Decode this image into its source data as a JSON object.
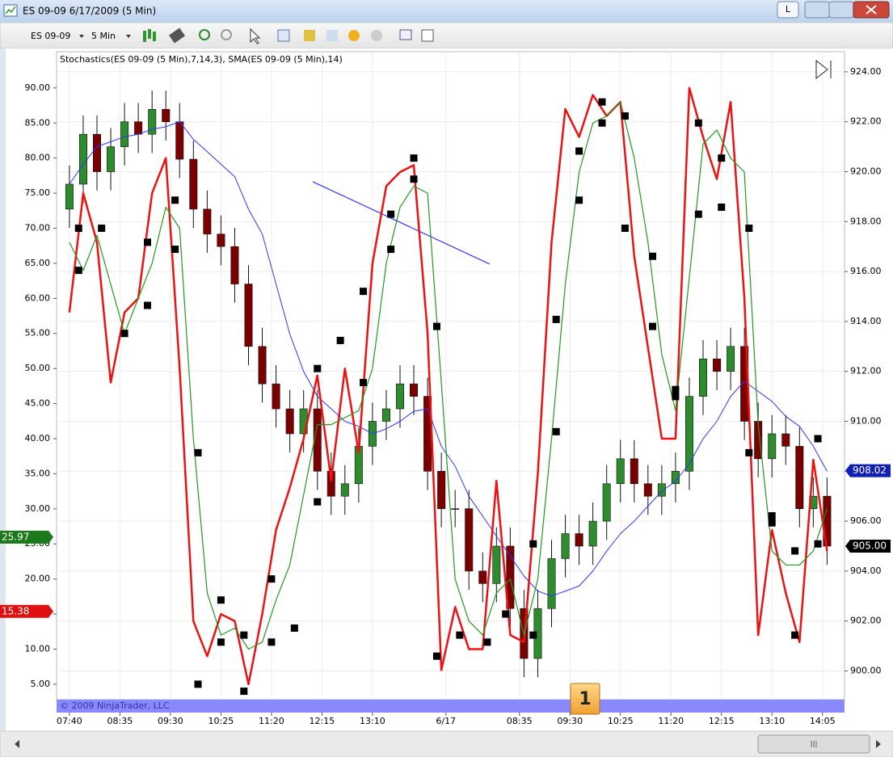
{
  "window": {
    "title": "ES 09-09  6/17/2009 (5 Min)",
    "button": "L"
  },
  "toolbar": {
    "instrument": "ES 09-09",
    "interval": "5 Min"
  },
  "copyright": "© 2009 NinjaTrader, LLC",
  "badge": "1",
  "chart_data": {
    "type": "candlestick",
    "title": "Stochastics(ES 09-09 (5 Min),7,14,3), SMA(ES 09-09 (5 Min),14)",
    "x": [
      0,
      3,
      6,
      9,
      12,
      15,
      18,
      21,
      24,
      27,
      30,
      33,
      36,
      39,
      42,
      45,
      48,
      51,
      54,
      57,
      60,
      63,
      66,
      69,
      72,
      75,
      78,
      81,
      84,
      87,
      90,
      93,
      96,
      99,
      102,
      105,
      108,
      111,
      114,
      117,
      120,
      123,
      126,
      129,
      132,
      135,
      138,
      141,
      144,
      147,
      150,
      153,
      156,
      159,
      162,
      165
    ],
    "open": [
      918.5,
      919.5,
      921.5,
      920,
      921,
      922,
      921.5,
      922.5,
      922,
      920.5,
      918.5,
      917.5,
      917,
      915.5,
      913,
      911.5,
      910.5,
      909.5,
      910.5,
      908,
      907,
      907.5,
      909,
      910,
      910.5,
      911.5,
      911,
      908,
      906.5,
      906.5,
      904,
      903.5,
      905,
      902.5,
      900.5,
      902.5,
      904.5,
      905.5,
      905,
      906,
      907.5,
      908.5,
      907.5,
      907,
      907.5,
      908,
      911,
      912.5,
      912,
      913,
      910,
      908.5,
      909.5,
      909,
      906.5,
      907
    ],
    "high": [
      920.25,
      922.25,
      922.25,
      921.75,
      922.75,
      922.75,
      923.25,
      923.25,
      922.75,
      921.25,
      919.25,
      918.25,
      917.75,
      916.25,
      913.75,
      912.25,
      911.25,
      911.25,
      911.25,
      908.75,
      908.25,
      909.75,
      910.75,
      911.25,
      912.25,
      912.25,
      911.75,
      908.75,
      907.25,
      907.25,
      904.75,
      905.75,
      905.75,
      903.25,
      903.25,
      905.25,
      906.25,
      906.25,
      906.75,
      908.25,
      909.25,
      909.25,
      908.25,
      908.25,
      908.75,
      911.75,
      913.25,
      913.25,
      913.75,
      913.75,
      910.75,
      910.25,
      910.25,
      909.75,
      907.75,
      907.75
    ],
    "low": [
      917.75,
      918.75,
      919.25,
      919.25,
      920.25,
      920.75,
      920.75,
      921.25,
      919.75,
      917.75,
      916.75,
      916.25,
      914.75,
      912.25,
      910.75,
      909.75,
      908.75,
      908.75,
      907.25,
      906.25,
      906.25,
      906.75,
      908.25,
      909.25,
      909.75,
      910.25,
      907.25,
      905.75,
      905.75,
      903.25,
      902.75,
      902.75,
      901.75,
      899.75,
      899.75,
      901.75,
      903.75,
      904.25,
      904.25,
      905.25,
      906.75,
      906.75,
      906.25,
      906.25,
      906.75,
      907.25,
      910.25,
      911.25,
      911.25,
      909.25,
      907.75,
      907.75,
      908.25,
      905.75,
      905.75,
      904.25
    ],
    "close": [
      919.5,
      921.5,
      920,
      921,
      922,
      921.5,
      922.5,
      922,
      920.5,
      918.5,
      917.5,
      917,
      915.5,
      913,
      911.5,
      910.5,
      909.5,
      910.5,
      908,
      907,
      907.5,
      909,
      910,
      910.5,
      911.5,
      911,
      908,
      906.5,
      906.5,
      904,
      903.5,
      905,
      902.5,
      900.5,
      902.5,
      904.5,
      905.5,
      905,
      906,
      907.5,
      908.5,
      907.5,
      907,
      907.5,
      908,
      911,
      912.5,
      912,
      913,
      910,
      908.5,
      909.5,
      909,
      906.5,
      907,
      905
    ],
    "up_color": "#2e8b2e",
    "down_color": "#7a0000",
    "series": [
      {
        "color": "#3333ff",
        "axis": "y2",
        "width": 1,
        "values": [
          919.5,
          920.3,
          921,
          921.2,
          921.4,
          921.5,
          921.7,
          921.8,
          922,
          921.3,
          920.8,
          920.3,
          919.8,
          918.5,
          917.5,
          915.5,
          913.5,
          912,
          911,
          910.5,
          910,
          909.8,
          909.5,
          909.7,
          910,
          910.4,
          910.5,
          909,
          908.2,
          907,
          906.2,
          905.4,
          904.6,
          903.8,
          903.2,
          903,
          903.2,
          903.4,
          904,
          904.8,
          905.5,
          906,
          906.6,
          907.2,
          907.6,
          908.3,
          909.3,
          910,
          911,
          911.6,
          911.2,
          910.8,
          910.2,
          909.8,
          909,
          908
        ]
      },
      {
        "color": "#ee1111",
        "axis": "y",
        "width": 2.5,
        "values": [
          58,
          75,
          68,
          48,
          58,
          60,
          75,
          80,
          50,
          14,
          9,
          15,
          14,
          5,
          15,
          27,
          33,
          40,
          49,
          34,
          50,
          38,
          65,
          76,
          78,
          79,
          55,
          7,
          16,
          10,
          10,
          34,
          12,
          11,
          35,
          68,
          87,
          83,
          89,
          86,
          88,
          66,
          53,
          40,
          40,
          90,
          83,
          77,
          88,
          60,
          12,
          27,
          18,
          11,
          37,
          24
        ]
      },
      {
        "color": "#229922",
        "axis": "y",
        "width": 1.2,
        "values": [
          68,
          64,
          69,
          62,
          55,
          60,
          65,
          73,
          70,
          40,
          18,
          12,
          13,
          10,
          11,
          17,
          22,
          32,
          42,
          42,
          43,
          44,
          50,
          65,
          73,
          76,
          75,
          48,
          20,
          14,
          12,
          18,
          20,
          12,
          20,
          40,
          62,
          78,
          85,
          86,
          88,
          80,
          68,
          52,
          44,
          63,
          82,
          84,
          80,
          78,
          42,
          24,
          22,
          22,
          24,
          30
        ]
      }
    ],
    "markers": {
      "color": "#000000",
      "x": [
        2,
        2,
        7,
        12,
        17,
        17,
        23,
        23,
        28,
        28,
        33,
        33,
        38,
        38,
        44,
        44,
        49,
        54,
        54,
        59,
        64,
        64,
        70,
        70,
        75,
        75,
        80,
        80,
        85,
        91,
        95,
        101,
        101,
        106,
        106,
        111,
        111,
        116,
        116,
        121,
        121,
        127,
        127,
        132,
        132,
        137,
        137,
        142,
        142,
        148,
        148,
        153,
        153,
        158,
        158,
        163,
        163
      ],
      "values": [
        70,
        64,
        70,
        55,
        59,
        68,
        67,
        74,
        38,
        5,
        17,
        11,
        4,
        12,
        20,
        11,
        13,
        31,
        50,
        54,
        48,
        61,
        72,
        67,
        80,
        77,
        56,
        9,
        12,
        11,
        15,
        12,
        25,
        57,
        41,
        74,
        81,
        88,
        85,
        70,
        86,
        56,
        66,
        47,
        46,
        72,
        85,
        80,
        73,
        70,
        38,
        29,
        28,
        12,
        24,
        40,
        25
      ]
    },
    "trendline": {
      "color": "#3333ff",
      "x": [
        53,
        91.5
      ],
      "values": [
        919.6,
        916.3
      ]
    },
    "price_markers": [
      {
        "value": 25.97,
        "axis": "y",
        "color": "#1a7a1a"
      },
      {
        "value": 15.38,
        "axis": "y",
        "color": "#e01010"
      },
      {
        "value": 908.02,
        "axis": "y2",
        "color": "#1020b0"
      },
      {
        "value": 905,
        "label": "905.00",
        "axis": "y2",
        "color": "#000000"
      }
    ],
    "xlim": [
      -2.8,
      168.8
    ],
    "xticks": [
      {
        "value": 0,
        "label": "07:40"
      },
      {
        "value": 11,
        "label": "08:35"
      },
      {
        "value": 22,
        "label": "09:30"
      },
      {
        "value": 33,
        "label": "10:25"
      },
      {
        "value": 44,
        "label": "11:20"
      },
      {
        "value": 55,
        "label": "12:15"
      },
      {
        "value": 66,
        "label": "13:10"
      },
      {
        "value": 82,
        "label": "6/17"
      },
      {
        "value": 98,
        "label": "08:35"
      },
      {
        "value": 109,
        "label": "09:30"
      },
      {
        "value": 120,
        "label": "10:25"
      },
      {
        "value": 131,
        "label": "11:20"
      },
      {
        "value": 142,
        "label": "12:15"
      },
      {
        "value": 153,
        "label": "13:10"
      },
      {
        "value": 164,
        "label": "14:05"
      }
    ],
    "ylim": [
      2.8,
      92.4
    ],
    "yticks": [
      {
        "value": 5,
        "label": "5.00"
      },
      {
        "value": 10,
        "label": "10.00"
      },
      {
        "value": 15,
        "label": "15.00"
      },
      {
        "value": 20,
        "label": "20.00"
      },
      {
        "value": 25,
        "label": "25.00"
      },
      {
        "value": 30,
        "label": "30.00"
      },
      {
        "value": 35,
        "label": "35.00"
      },
      {
        "value": 40,
        "label": "40.00"
      },
      {
        "value": 45,
        "label": "45.00"
      },
      {
        "value": 50,
        "label": "50.00"
      },
      {
        "value": 55,
        "label": "55.00"
      },
      {
        "value": 60,
        "label": "60.00"
      },
      {
        "value": 65,
        "label": "65.00"
      },
      {
        "value": 70,
        "label": "70.00"
      },
      {
        "value": 75,
        "label": "75.00"
      },
      {
        "value": 80,
        "label": "80.00"
      },
      {
        "value": 85,
        "label": "85.00"
      },
      {
        "value": 90,
        "label": "90.00"
      }
    ],
    "y2lim": [
      898.85,
      924.03
    ],
    "y2ticks": [
      {
        "value": 900,
        "label": "900.00"
      },
      {
        "value": 902,
        "label": "902.00"
      },
      {
        "value": 904,
        "label": "904.00"
      },
      {
        "value": 906,
        "label": "906.00"
      },
      {
        "value": 908,
        "label": "908.00"
      },
      {
        "value": 910,
        "label": "910.00"
      },
      {
        "value": 912,
        "label": "912.00"
      },
      {
        "value": 914,
        "label": "914.00"
      },
      {
        "value": 916,
        "label": "916.00"
      },
      {
        "value": 918,
        "label": "918.00"
      },
      {
        "value": 920,
        "label": "920.00"
      },
      {
        "value": 922,
        "label": "922.00"
      },
      {
        "value": 924,
        "label": "924.00"
      }
    ],
    "grid": true
  }
}
